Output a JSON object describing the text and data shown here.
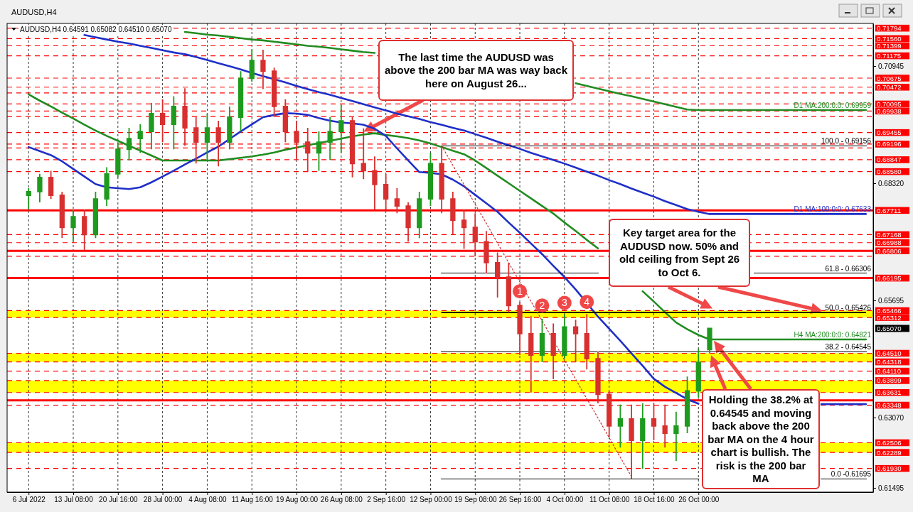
{
  "chart_data": {
    "type": "candlestick",
    "title": "AUDUSD,H4",
    "subtitle": "AUDUSD,H4  0.64591 0.65082 0.64510 0.65070",
    "categories": [
      "6 Jul 2022",
      null,
      null,
      null,
      "13 Jul 08:00",
      null,
      null,
      null,
      "20 Jul 16:00",
      null,
      null,
      null,
      "28 Jul 00:00",
      null,
      null,
      null,
      "4 Aug 08:00",
      null,
      null,
      null,
      "11 Aug 16:00",
      null,
      null,
      null,
      "19 Aug 00:00",
      null,
      null,
      null,
      "26 Aug 08:00",
      null,
      null,
      null,
      "2 Sep 16:00",
      null,
      null,
      null,
      "12 Sep 00:00",
      null,
      null,
      null,
      "19 Sep 08:00",
      null,
      null,
      null,
      "26 Sep 16:00",
      null,
      null,
      null,
      "4 Oct 00:00",
      null,
      null,
      null,
      "11 Oct 08:00",
      null,
      null,
      null,
      "18 Oct 16:00",
      null,
      null,
      null,
      "26 Oct 00:00",
      null,
      null,
      null,
      null,
      null,
      null,
      null,
      null,
      null,
      null,
      null,
      null,
      null,
      null,
      null
    ],
    "ohlc": [
      [
        0.6805,
        0.6821,
        0.6773,
        0.6813
      ],
      [
        0.6813,
        0.6853,
        0.6789,
        0.6845
      ],
      [
        0.6845,
        0.686,
        0.6797,
        0.6805
      ],
      [
        0.6805,
        0.6813,
        0.6709,
        0.6733
      ],
      [
        0.6733,
        0.6773,
        0.6701,
        0.6757
      ],
      [
        0.6757,
        0.6773,
        0.6682,
        0.6717
      ],
      [
        0.6717,
        0.6813,
        0.6709,
        0.6797
      ],
      [
        0.6797,
        0.6868,
        0.6781,
        0.6853
      ],
      [
        0.6853,
        0.6924,
        0.6845,
        0.6908
      ],
      [
        0.6908,
        0.6956,
        0.6883,
        0.6932
      ],
      [
        0.6932,
        0.6964,
        0.69,
        0.6948
      ],
      [
        0.6948,
        0.7012,
        0.6908,
        0.6988
      ],
      [
        0.6988,
        0.702,
        0.6924,
        0.6964
      ],
      [
        0.6964,
        0.7027,
        0.6908,
        0.7004
      ],
      [
        0.7004,
        0.7045,
        0.6916,
        0.6956
      ],
      [
        0.6956,
        0.698,
        0.6876,
        0.6924
      ],
      [
        0.6924,
        0.6988,
        0.6884,
        0.6956
      ],
      [
        0.6956,
        0.6972,
        0.687,
        0.6924
      ],
      [
        0.6924,
        0.7004,
        0.6908,
        0.698
      ],
      [
        0.698,
        0.7083,
        0.6948,
        0.7067
      ],
      [
        0.7067,
        0.7132,
        0.7059,
        0.7107
      ],
      [
        0.7107,
        0.7131,
        0.7043,
        0.7083
      ],
      [
        0.7083,
        0.7091,
        0.698,
        0.7004
      ],
      [
        0.7004,
        0.702,
        0.6924,
        0.6948
      ],
      [
        0.6948,
        0.6972,
        0.6884,
        0.6924
      ],
      [
        0.6924,
        0.6956,
        0.6857,
        0.69
      ],
      [
        0.69,
        0.6948,
        0.686,
        0.6924
      ],
      [
        0.6924,
        0.698,
        0.6884,
        0.6948
      ],
      [
        0.6948,
        0.7007,
        0.69,
        0.6972
      ],
      [
        0.6972,
        0.698,
        0.6845,
        0.6876
      ],
      [
        0.6876,
        0.6955,
        0.6841,
        0.686
      ],
      [
        0.686,
        0.6892,
        0.6773,
        0.6829
      ],
      [
        0.6829,
        0.6853,
        0.6773,
        0.6797
      ],
      [
        0.6797,
        0.6821,
        0.6765,
        0.6781
      ],
      [
        0.6781,
        0.6789,
        0.6701,
        0.6733
      ],
      [
        0.6733,
        0.6813,
        0.6709,
        0.6797
      ],
      [
        0.6797,
        0.69,
        0.6781,
        0.6876
      ],
      [
        0.6876,
        0.6916,
        0.6765,
        0.6797
      ],
      [
        0.6797,
        0.6813,
        0.6717,
        0.6749
      ],
      [
        0.6749,
        0.6773,
        0.6685,
        0.6733
      ],
      [
        0.6733,
        0.6765,
        0.6668,
        0.6701
      ],
      [
        0.6701,
        0.6725,
        0.663,
        0.6654
      ],
      [
        0.6654,
        0.6677,
        0.6576,
        0.6622
      ],
      [
        0.6622,
        0.6654,
        0.6542,
        0.6558
      ],
      [
        0.6558,
        0.6566,
        0.6447,
        0.6495
      ],
      [
        0.6495,
        0.6534,
        0.6363,
        0.6447
      ],
      [
        0.6447,
        0.6528,
        0.6431,
        0.6495
      ],
      [
        0.6495,
        0.6518,
        0.6393,
        0.6447
      ],
      [
        0.6447,
        0.6539,
        0.6439,
        0.651
      ],
      [
        0.651,
        0.6526,
        0.6431,
        0.6495
      ],
      [
        0.6495,
        0.6539,
        0.6415,
        0.6439
      ],
      [
        0.6439,
        0.6455,
        0.6339,
        0.6359
      ],
      [
        0.6359,
        0.6367,
        0.6264,
        0.6288
      ],
      [
        0.6288,
        0.6336,
        0.624,
        0.6304
      ],
      [
        0.6304,
        0.6336,
        0.617,
        0.6256
      ],
      [
        0.6256,
        0.6339,
        0.6192,
        0.6304
      ],
      [
        0.6304,
        0.6339,
        0.6256,
        0.6288
      ],
      [
        0.6288,
        0.6336,
        0.624,
        0.6272
      ],
      [
        0.6272,
        0.632,
        0.621,
        0.6288
      ],
      [
        0.6288,
        0.6399,
        0.6272,
        0.6367
      ],
      [
        0.6367,
        0.6461,
        0.6351,
        0.6431
      ],
      [
        0.64591,
        0.65082,
        0.6451,
        0.6507
      ],
      null,
      null,
      null,
      null,
      null,
      null,
      null,
      null,
      null,
      null,
      null,
      null,
      null,
      null
    ],
    "colors": [
      "#1e9b1e",
      "#1e9b1e",
      "#d83030",
      "#d83030",
      "#1e9b1e",
      "#d83030",
      "#1e9b1e",
      "#1e9b1e",
      "#1e9b1e",
      "#1e9b1e",
      "#1e9b1e",
      "#1e9b1e",
      "#d83030",
      "#1e9b1e",
      "#d83030",
      "#d83030",
      "#1e9b1e",
      "#d83030",
      "#1e9b1e",
      "#1e9b1e",
      "#1e9b1e",
      "#d83030",
      "#d83030",
      "#d83030",
      "#d83030",
      "#d83030",
      "#1e9b1e",
      "#1e9b1e",
      "#1e9b1e",
      "#d83030",
      "#d83030",
      "#d83030",
      "#d83030",
      "#d83030",
      "#d83030",
      "#1e9b1e",
      "#1e9b1e",
      "#d83030",
      "#d83030",
      "#d83030",
      "#d83030",
      "#d83030",
      "#d83030",
      "#d83030",
      "#d83030",
      "#d83030",
      "#1e9b1e",
      "#d83030",
      "#1e9b1e",
      "#d83030",
      "#d83030",
      "#d83030",
      "#d83030",
      "#1e9b1e",
      "#d83030",
      "#1e9b1e",
      "#d83030",
      "#d83030",
      "#1e9b1e",
      "#1e9b1e",
      "#1e9b1e",
      "#1e9b1e",
      null,
      null,
      null,
      null,
      null,
      null,
      null,
      null,
      null,
      null,
      null,
      null,
      null,
      null
    ],
    "series": [
      {
        "type": "line",
        "name": "D1 MA:200:0:0: 0.69959",
        "color": "#218c21",
        "values": [
          null,
          null,
          null,
          null,
          null,
          null,
          null,
          null,
          null,
          null,
          null,
          null,
          null,
          null,
          0.7171,
          0.7168,
          0.7165,
          0.7163,
          0.716,
          0.7157,
          0.7154,
          0.7152,
          0.7149,
          0.7146,
          0.7143,
          0.714,
          0.7138,
          0.7135,
          0.7132,
          0.7129,
          0.7126,
          0.7124,
          null,
          null,
          null,
          null,
          null,
          null,
          null,
          null,
          null,
          null,
          null,
          null,
          null,
          null,
          null,
          null,
          null,
          0.7056,
          0.705,
          0.7044,
          0.7038,
          0.7032,
          0.7027,
          0.7021,
          0.7015,
          0.7009,
          0.7003,
          0.6997,
          0.6996,
          0.6996,
          0.6996,
          0.6996,
          0.6996,
          0.6996,
          0.6996,
          0.6996,
          0.6996,
          0.6996,
          0.6996,
          0.6996,
          0.6996,
          0.6996,
          0.6996,
          0.6996
        ]
      },
      {
        "type": "line",
        "name": "D1 MA:100:0:0: 0.67633",
        "color": "#1f2fc8",
        "values": [
          null,
          null,
          null,
          null,
          null,
          0.7164,
          0.7159,
          0.7154,
          0.7149,
          0.7145,
          0.714,
          0.7135,
          0.713,
          0.7125,
          0.7121,
          0.7115,
          0.7108,
          0.7101,
          0.7094,
          0.7087,
          0.7079,
          0.7072,
          0.7065,
          0.7058,
          0.705,
          0.7043,
          0.7036,
          0.703,
          0.7023,
          0.7016,
          0.7009,
          0.7002,
          0.6995,
          0.6988,
          0.6982,
          0.6976,
          0.6969,
          0.6963,
          0.6956,
          0.695,
          0.6942,
          0.6934,
          0.6925,
          0.6917,
          0.6909,
          0.69,
          0.6892,
          0.6884,
          0.6876,
          0.6867,
          0.6858,
          0.6849,
          0.6839,
          0.683,
          0.682,
          0.6811,
          0.6802,
          0.6792,
          0.6783,
          0.6774,
          0.6768,
          0.6763,
          0.6763,
          0.6763,
          0.6763,
          0.6763,
          0.6763,
          0.6763,
          0.6763,
          0.6763,
          0.6763,
          0.6763,
          0.6763,
          0.6763,
          0.6763,
          0.6763
        ]
      },
      {
        "type": "line",
        "name": "H4 MA:200:0:0: 0.64821",
        "color": "#218c21",
        "values": [
          0.7031,
          0.7017,
          0.7004,
          0.699,
          0.6977,
          0.6963,
          0.695,
          0.6938,
          0.6927,
          0.6916,
          0.6905,
          0.6894,
          0.6883,
          0.6883,
          0.6883,
          0.6883,
          0.6883,
          0.6883,
          0.6886,
          0.6889,
          0.6892,
          0.6896,
          0.6901,
          0.6907,
          0.6912,
          0.6917,
          0.6922,
          0.6927,
          0.6932,
          0.6937,
          0.6941,
          0.6944,
          0.694,
          0.6937,
          0.6933,
          0.6928,
          0.6921,
          0.6913,
          0.6905,
          0.6897,
          0.6883,
          0.6866,
          0.6849,
          0.6832,
          0.6815,
          0.6798,
          0.6781,
          0.6764,
          0.6744,
          0.6725,
          0.6705,
          0.6686,
          null,
          null,
          null,
          0.659,
          0.6567,
          0.6543,
          0.652,
          0.6505,
          0.6492,
          0.6482,
          0.6482,
          0.6482,
          0.6482,
          0.6482,
          0.6482,
          0.6482,
          0.6482,
          0.6482,
          0.6482,
          0.6482,
          0.6482,
          0.6482,
          0.6482,
          0.6482
        ]
      },
      {
        "type": "line",
        "color": "#1f2fc8",
        "values": [
          0.6913,
          0.6904,
          0.6895,
          0.6881,
          0.6864,
          0.6847,
          0.683,
          0.6823,
          0.6821,
          0.6819,
          0.6823,
          0.6834,
          0.6847,
          0.686,
          0.6874,
          0.6887,
          0.6901,
          0.6914,
          0.6931,
          0.6948,
          0.6964,
          0.698,
          0.6985,
          0.6989,
          0.6988,
          0.6985,
          0.6978,
          0.6972,
          0.6968,
          0.6966,
          0.6963,
          0.6954,
          0.6938,
          0.691,
          0.6883,
          0.6857,
          0.6855,
          0.6852,
          0.684,
          0.6825,
          0.6806,
          0.6787,
          0.6768,
          0.6744,
          0.6721,
          0.6697,
          0.6673,
          0.6647,
          0.6622,
          0.6594,
          0.6564,
          0.6533,
          0.6506,
          0.6479,
          0.6451,
          0.6423,
          0.6394,
          0.6376,
          0.6362,
          0.6348,
          0.6338,
          null,
          null,
          null,
          null,
          null,
          null,
          null,
          null,
          null,
          null,
          0.6337,
          0.6337,
          0.6337,
          0.6337,
          0.6337
        ]
      },
      {
        "type": "line",
        "name": "100.0 - 0.69156",
        "color": "#000000",
        "values": [
          null,
          null,
          null,
          null,
          null,
          null,
          null,
          null,
          null,
          null,
          null,
          null,
          null,
          null,
          null,
          null,
          null,
          null,
          null,
          null,
          null,
          null,
          null,
          null,
          null,
          null,
          null,
          null,
          null,
          null,
          null,
          null,
          null,
          null,
          null,
          null,
          null,
          0.69156,
          0.69156,
          0.69156,
          0.69156,
          0.69156,
          0.69156,
          0.69156,
          0.69156,
          0.69156,
          0.69156,
          0.69156,
          0.69156,
          0.69156,
          0.69156,
          0.69156,
          0.69156,
          0.69156,
          0.69156,
          0.69156,
          0.69156,
          0.69156,
          0.69156,
          0.69156,
          0.69156,
          0.69156,
          0.69156,
          0.69156,
          0.69156,
          0.69156,
          0.69156,
          0.69156,
          0.69156,
          0.69156,
          0.69156,
          0.69156,
          0.69156,
          0.69156,
          0.69156,
          0.69156
        ]
      },
      {
        "type": "line",
        "name": "61.8 - 0.66306",
        "color": "#000000",
        "values": [
          null,
          null,
          null,
          null,
          null,
          null,
          null,
          null,
          null,
          null,
          null,
          null,
          null,
          null,
          null,
          null,
          null,
          null,
          null,
          null,
          null,
          null,
          null,
          null,
          null,
          null,
          null,
          null,
          null,
          null,
          null,
          null,
          null,
          null,
          null,
          null,
          null,
          0.66306,
          0.66306,
          0.66306,
          0.66306,
          0.66306,
          0.66306,
          0.66306,
          0.66306,
          0.66306,
          0.66306,
          0.66306,
          0.66306,
          0.66306,
          0.66306,
          0.66306,
          null,
          null,
          null,
          null,
          null,
          null,
          null,
          null,
          null,
          null,
          null,
          null,
          null,
          0.66306,
          0.66306,
          0.66306,
          0.66306,
          0.66306,
          0.66306,
          0.66306,
          0.66306,
          0.66306,
          0.66306,
          0.66306
        ]
      },
      {
        "type": "line",
        "name": "50.0 - 0.65426",
        "color": "#000000",
        "values": [
          null,
          null,
          null,
          null,
          null,
          null,
          null,
          null,
          null,
          null,
          null,
          null,
          null,
          null,
          null,
          null,
          null,
          null,
          null,
          null,
          null,
          null,
          null,
          null,
          null,
          null,
          null,
          null,
          null,
          null,
          null,
          null,
          null,
          null,
          null,
          null,
          null,
          0.65426,
          0.65426,
          0.65426,
          0.65426,
          0.65426,
          0.65426,
          0.65426,
          0.65426,
          0.65426,
          0.65426,
          0.65426,
          0.65426,
          0.65426,
          0.65426,
          0.65426,
          0.65426,
          0.65426,
          0.65426,
          0.65426,
          0.65426,
          0.65426,
          0.65426,
          0.65426,
          0.65426,
          0.65426,
          0.65426,
          0.65426,
          0.65426,
          0.65426,
          0.65426,
          0.65426,
          0.65426,
          0.65426,
          0.65426,
          0.65426,
          0.65426,
          0.65426,
          0.65426,
          0.65426
        ]
      },
      {
        "type": "line",
        "name": "38.2 - 0.64545",
        "color": "#000000",
        "values": [
          null,
          null,
          null,
          null,
          null,
          null,
          null,
          null,
          null,
          null,
          null,
          null,
          null,
          null,
          null,
          null,
          null,
          null,
          null,
          null,
          null,
          null,
          null,
          null,
          null,
          null,
          null,
          null,
          null,
          null,
          null,
          null,
          null,
          null,
          null,
          null,
          null,
          0.64545,
          0.64545,
          0.64545,
          0.64545,
          0.64545,
          0.64545,
          0.64545,
          0.64545,
          0.64545,
          0.64545,
          0.64545,
          0.64545,
          0.64545,
          0.64545,
          0.64545,
          0.64545,
          0.64545,
          0.64545,
          0.64545,
          0.64545,
          0.64545,
          0.64545,
          0.64545,
          0.64545,
          0.64545,
          0.64545,
          0.64545,
          0.64545,
          0.64545,
          0.64545,
          0.64545,
          0.64545,
          0.64545,
          0.64545,
          0.64545,
          0.64545,
          0.64545,
          0.64545,
          0.64545
        ]
      },
      {
        "type": "line",
        "name": "0.0 -0.61695",
        "color": "#000000",
        "values": [
          null,
          null,
          null,
          null,
          null,
          null,
          null,
          null,
          null,
          null,
          null,
          null,
          null,
          null,
          null,
          null,
          null,
          null,
          null,
          null,
          null,
          null,
          null,
          null,
          null,
          null,
          null,
          null,
          null,
          null,
          null,
          null,
          null,
          null,
          null,
          null,
          null,
          0.61695,
          0.61695,
          0.61695,
          0.61695,
          0.61695,
          0.61695,
          0.61695,
          0.61695,
          0.61695,
          0.61695,
          0.61695,
          0.61695,
          0.61695,
          0.61695,
          0.61695,
          0.61695,
          0.61695,
          0.61695,
          0.61695,
          0.61695,
          0.61695,
          0.61695,
          0.61695,
          0.61695,
          null,
          null,
          null,
          null,
          null,
          null,
          null,
          null,
          null,
          null,
          0.61695,
          0.61695,
          0.61695,
          0.61695,
          0.61695
        ]
      },
      {
        "type": "line",
        "color": "#c83232",
        "line_style": "dotted",
        "values": [
          null,
          null,
          null,
          null,
          null,
          null,
          null,
          null,
          null,
          null,
          null,
          null,
          null,
          null,
          null,
          null,
          null,
          null,
          null,
          null,
          null,
          null,
          null,
          null,
          null,
          null,
          null,
          null,
          null,
          null,
          null,
          null,
          null,
          null,
          null,
          null,
          null,
          0.6916,
          0.6872,
          0.6829,
          0.6785,
          0.6742,
          0.6698,
          0.6654,
          0.6611,
          0.6567,
          0.6524,
          0.648,
          0.6436,
          0.6393,
          0.6349,
          0.6306,
          0.6262,
          0.6218,
          0.6175,
          null,
          null,
          null,
          null,
          null,
          null,
          null,
          null,
          null,
          null,
          null,
          null,
          null,
          null,
          null,
          null,
          null,
          null,
          null,
          null,
          null
        ]
      }
    ],
    "ylim": [
      0.614,
      0.719
    ],
    "yticks": [
      0.70945,
      {
        "value": 0.6832,
        "label": "0.68320"
      },
      0.65695,
      {
        "value": 0.6307,
        "label": "0.63070"
      },
      0.61495
    ],
    "grid": "x",
    "bands": [
      {
        "axis": "y",
        "from": 0.65312,
        "to": 0.65466,
        "color": "#ffff00"
      },
      {
        "axis": "y",
        "from": 0.64318,
        "to": 0.6451,
        "color": "#ffff00"
      },
      {
        "axis": "y",
        "from": 0.63631,
        "to": 0.63899,
        "color": "#ffff00"
      },
      {
        "axis": "y",
        "from": 0.62289,
        "to": 0.62506,
        "color": "#ffff00"
      }
    ],
    "ref_lines": [
      {
        "axis": "y",
        "value": 0.71794,
        "label": "0.71794",
        "color": "#ff0000",
        "line_style": "dashed"
      },
      {
        "axis": "y",
        "value": 0.7156,
        "label": "0.71560",
        "color": "#ff0000",
        "line_style": "dashed"
      },
      {
        "axis": "y",
        "value": 0.71399,
        "label": "0.71399",
        "color": "#ff0000",
        "line_style": "dashed"
      },
      {
        "axis": "y",
        "value": 0.71175,
        "label": "0.71175",
        "color": "#ff0000",
        "line_style": "dashed"
      },
      {
        "axis": "y",
        "value": 0.70675,
        "label": "0.70675",
        "color": "#ff0000",
        "line_style": "dashed"
      },
      {
        "axis": "y",
        "value": 0.70472,
        "label": "0.70472",
        "color": "#ff0000",
        "line_style": "dashed"
      },
      {
        "axis": "y",
        "value": 0.70344,
        "label": null,
        "color": "#ff0000",
        "line_style": "dashed"
      },
      {
        "axis": "y",
        "value": 0.70095,
        "label": "0.70095",
        "color": "#ff0000",
        "line_style": "dashed"
      },
      {
        "axis": "y",
        "value": 0.69938,
        "label": "0.69938",
        "color": "#ff0000",
        "line_style": "dashed"
      },
      {
        "axis": "y",
        "value": 0.69815,
        "label": null,
        "color": "#ff0000",
        "line_style": "dashed"
      },
      {
        "axis": "y",
        "value": 0.69455,
        "label": "0.69455",
        "color": "#ff0000",
        "line_style": "dashed"
      },
      {
        "axis": "y",
        "value": 0.69196,
        "label": "0.69196",
        "color": "#ff0000",
        "line_style": "dashed"
      },
      {
        "axis": "y",
        "value": 0.6911,
        "label": null,
        "color": "#ff0000",
        "line_style": "dashed"
      },
      {
        "axis": "y",
        "value": 0.68847,
        "label": "0.68847",
        "color": "#ff0000",
        "line_style": "dashed"
      },
      {
        "axis": "y",
        "value": 0.6858,
        "label": "0.68580",
        "color": "#ff0000",
        "line_style": "dashed"
      },
      {
        "axis": "y",
        "value": 0.67711,
        "label": "0.67711",
        "color": "#ff0000",
        "line_style": "solid"
      },
      {
        "axis": "y",
        "value": 0.67168,
        "label": "0.67168",
        "color": "#ff0000",
        "line_style": "dashed"
      },
      {
        "axis": "y",
        "value": 0.66988,
        "label": "0.66988",
        "color": "#ff0000",
        "line_style": "dashed"
      },
      {
        "axis": "y",
        "value": 0.66806,
        "label": "0.66806",
        "color": "#ff0000",
        "line_style": "solid"
      },
      {
        "axis": "y",
        "value": 0.66684,
        "label": null,
        "color": "#ff0000",
        "line_style": "dashed"
      },
      {
        "axis": "y",
        "value": 0.66195,
        "label": "0.66195",
        "color": "#ff0000",
        "line_style": "solid"
      },
      {
        "axis": "y",
        "value": 0.65466,
        "label": "0.65466",
        "color": "#ff0000",
        "line_style": "dashed"
      },
      {
        "axis": "y",
        "value": 0.65312,
        "label": "0.65312",
        "color": "#ff0000",
        "line_style": "dashed"
      },
      {
        "axis": "y",
        "value": 0.6451,
        "label": "0.64510",
        "color": "#ff0000",
        "line_style": "dashed"
      },
      {
        "axis": "y",
        "value": 0.64318,
        "label": "0.64318",
        "color": "#ff0000",
        "line_style": "dashed"
      },
      {
        "axis": "y",
        "value": 0.6411,
        "label": "0.64110",
        "color": "#ff0000",
        "line_style": "dashed"
      },
      {
        "axis": "y",
        "value": 0.63899,
        "label": "0.63899",
        "color": "#ff0000",
        "line_style": "dashed"
      },
      {
        "axis": "y",
        "value": 0.63631,
        "label": "0.63631",
        "color": "#ff0000",
        "line_style": "dashed"
      },
      {
        "axis": "y",
        "value": 0.63456,
        "label": null,
        "color": "#ff0000",
        "line_style": "solid"
      },
      {
        "axis": "y",
        "value": 0.63348,
        "label": "0.63348",
        "color": "#ff0000",
        "line_style": "dashed"
      },
      {
        "axis": "y",
        "value": 0.62506,
        "label": "0.62506",
        "color": "#ff0000",
        "line_style": "dashed"
      },
      {
        "axis": "y",
        "value": 0.62289,
        "label": "0.62289",
        "color": "#ff0000",
        "line_style": "dashed"
      },
      {
        "axis": "y",
        "value": 0.6193,
        "label": "0.61930",
        "color": "#ff0000",
        "line_style": "dashed"
      }
    ],
    "annotations": [
      "The last time the AUDUSD was above the 200 bar MA was way back here on August 26...",
      "Key target area for the AUDUSD now. 50% and old ceiling from Sept 26 to Oct 6.",
      "Holding the 38.2% at 0.64545 and moving back above the 200 bar MA on the 4 hour chart is bullish. The risk is the 200 bar MA",
      {
        "text": "1",
        "y": 0.659
      },
      {
        "text": "2",
        "y": 0.6558
      },
      {
        "text": "3",
        "y": 0.6564
      },
      {
        "text": "4",
        "y": 0.6566
      },
      "0.65070"
    ]
  }
}
